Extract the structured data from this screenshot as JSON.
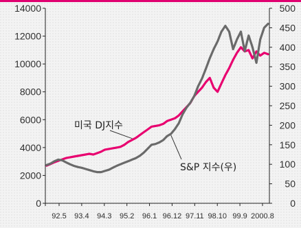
{
  "chart_data": {
    "type": "line",
    "colors": {
      "top_rule": "#e00070",
      "plot_bg": "#f4f4f4",
      "frame": "#222222"
    },
    "x_tick_labels": [
      "92.5",
      "93.4",
      "94.3",
      "95.2",
      "96.1",
      "96.12",
      "97.11",
      "98.10",
      "99.9",
      "2000.8"
    ],
    "y_left": {
      "ticks": [
        0,
        2000,
        4000,
        6000,
        8000,
        10000,
        12000,
        14000
      ],
      "ylim": [
        0,
        14000
      ]
    },
    "y_right": {
      "ticks": [
        0,
        50,
        100,
        150,
        200,
        250,
        300,
        350,
        400,
        450,
        500
      ],
      "ylim": [
        0,
        500
      ]
    },
    "grid": false,
    "series": [
      {
        "name": "미국 DJ지수",
        "axis": "left",
        "color": "#e8006f",
        "values": [
          2700,
          2820,
          2950,
          3050,
          3150,
          3250,
          3300,
          3350,
          3400,
          3450,
          3500,
          3550,
          3500,
          3600,
          3700,
          3850,
          3900,
          3950,
          4000,
          4050,
          4200,
          4400,
          4550,
          4700,
          4900,
          5100,
          5300,
          5500,
          5550,
          5600,
          5700,
          5900,
          6000,
          6100,
          6300,
          6600,
          6900,
          7200,
          7700,
          8000,
          8300,
          8700,
          9000,
          8300,
          8000,
          8600,
          9200,
          9700,
          10300,
          10800,
          11200,
          10900,
          11000,
          10400,
          10900,
          10600,
          10800,
          10700
        ]
      },
      {
        "name": "S&P 지수(우)",
        "axis": "right",
        "color": "#6a6a6a",
        "values": [
          98,
          102,
          108,
          112,
          110,
          105,
          100,
          96,
          93,
          91,
          88,
          85,
          82,
          80,
          80,
          83,
          86,
          91,
          96,
          100,
          104,
          108,
          112,
          116,
          122,
          130,
          140,
          150,
          152,
          156,
          162,
          172,
          178,
          190,
          205,
          228,
          245,
          258,
          275,
          300,
          320,
          345,
          372,
          395,
          415,
          440,
          455,
          440,
          395,
          420,
          440,
          390,
          430,
          400,
          360,
          420,
          450,
          460
        ]
      }
    ],
    "annotations": [
      {
        "text": "미국 DJ지수",
        "series": 0
      },
      {
        "text": "S&P 지수(우)",
        "series": 1
      }
    ]
  }
}
